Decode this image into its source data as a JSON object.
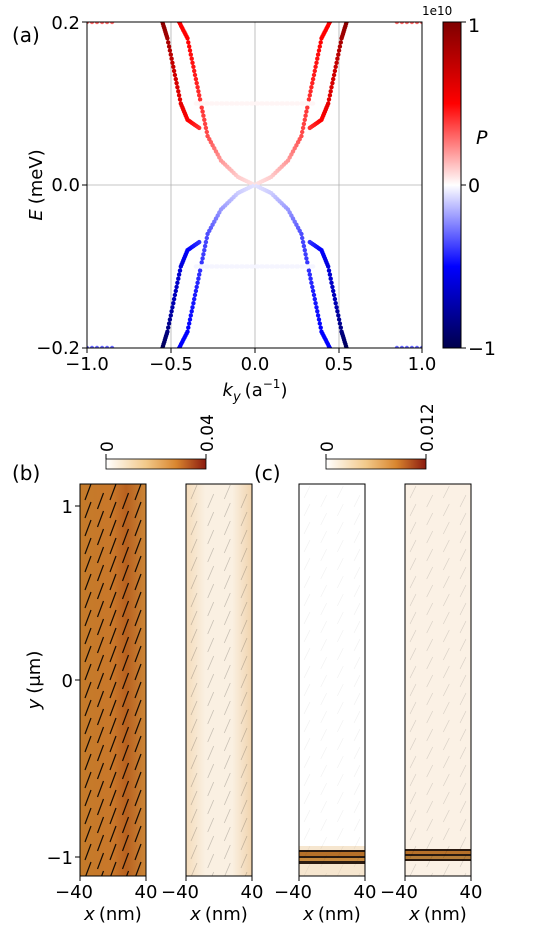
{
  "panels": {
    "a": {
      "label": "(a)",
      "xlabel_main": "k",
      "xlabel_sub": "y",
      "xlabel_unit": "(a",
      "xlabel_sup": "−1",
      "xlabel_close": ")",
      "ylabel_main": "E",
      "ylabel_unit": "(meV)",
      "xticks": [
        "−1.0",
        "−0.5",
        "0.0",
        "0.5",
        "1.0"
      ],
      "yticks": [
        "−0.2",
        "0.0",
        "0.2"
      ],
      "colorbar": {
        "label": "P",
        "offset": "1e10",
        "ticks": [
          "1",
          "0",
          "−1"
        ],
        "colormap": "seismic",
        "colors": {
          "low": "#00004c",
          "mid": "#ffffff",
          "high": "#7f0000"
        }
      }
    },
    "b": {
      "label": "(b)",
      "colorbar": {
        "ticks": [
          "0",
          "0.04"
        ],
        "colormap": "YlOrBr-like",
        "colors": {
          "low": "#ffffff",
          "mid": "#d9862f",
          "high": "#8b1a0f"
        }
      }
    },
    "c": {
      "label": "(c)",
      "colorbar": {
        "ticks": [
          "0",
          "0.012"
        ],
        "colormap": "YlOrBr-like"
      }
    },
    "maps": {
      "ylabel_main": "y",
      "ylabel_unit": "(μm)",
      "yticks": [
        "1",
        "0",
        "−1"
      ],
      "xticks": [
        "−40",
        "40"
      ],
      "xlabel_main": "x",
      "xlabel_unit": "(nm)"
    }
  },
  "chart_data": [
    {
      "type": "scatter",
      "panel": "a",
      "xlabel": "k_y (a^-1)",
      "ylabel": "E (meV)",
      "xlim": [
        -1.0,
        1.0
      ],
      "ylim": [
        -0.2,
        0.2
      ],
      "grid": true,
      "series": [
        {
          "kind": "branch",
          "x": [
            0.0,
            0.1,
            0.2,
            0.28,
            0.32,
            0.36,
            0.4,
            0.45
          ],
          "y": [
            0.0,
            0.01,
            0.03,
            0.06,
            0.1,
            0.14,
            0.18,
            0.2
          ],
          "P": [
            0.05,
            0.1,
            0.2,
            0.35,
            0.4,
            0.45,
            0.5,
            0.5
          ]
        },
        {
          "kind": "branch",
          "x": [
            0.33,
            0.4,
            0.44,
            0.48,
            0.52,
            0.55
          ],
          "y": [
            0.07,
            0.08,
            0.1,
            0.14,
            0.18,
            0.2
          ],
          "P": [
            0.4,
            0.5,
            0.6,
            0.7,
            0.85,
            0.95
          ]
        }
      ]
    },
    {
      "type": "heatmap",
      "panel": "b-left",
      "xlim": [
        -40,
        40
      ],
      "ylim": [
        -1.1,
        1.05
      ],
      "colorbar_range": [
        0,
        0.04
      ]
    },
    {
      "type": "heatmap",
      "panel": "b-right",
      "xlim": [
        -40,
        40
      ],
      "ylim": [
        -1.1,
        1.05
      ],
      "colorbar_range": [
        0,
        0.04
      ]
    },
    {
      "type": "heatmap",
      "panel": "c-left",
      "xlim": [
        -40,
        40
      ],
      "ylim": [
        -1.1,
        1.05
      ],
      "colorbar_range": [
        0,
        0.012
      ]
    },
    {
      "type": "heatmap",
      "panel": "c-right",
      "xlim": [
        -40,
        40
      ],
      "ylim": [
        -1.1,
        1.05
      ],
      "colorbar_range": [
        0,
        0.012
      ]
    }
  ]
}
